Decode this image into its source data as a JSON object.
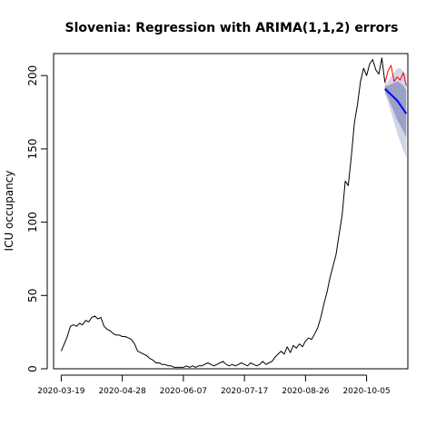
{
  "chart_data": {
    "type": "line",
    "title": "Slovenia: Regression with ARIMA(1,1,2) errors",
    "xlabel": "",
    "ylabel": "ICU occupancy",
    "x_ticks": [
      "2020-03-19",
      "2020-04-28",
      "2020-06-07",
      "2020-07-17",
      "2020-08-26",
      "2020-10-05"
    ],
    "y_ticks": [
      "0",
      "50",
      "100",
      "150",
      "200"
    ],
    "ylim": [
      0,
      215
    ],
    "xlim": [
      "2020-03-14",
      "2020-11-01"
    ],
    "grid": false,
    "series": [
      {
        "name": "",
        "role": "observed",
        "color": "#000000",
        "points": [
          [
            "2020-03-19",
            12
          ],
          [
            "2020-03-21",
            17
          ],
          [
            "2020-03-23",
            22
          ],
          [
            "2020-03-25",
            29
          ],
          [
            "2020-03-27",
            30
          ],
          [
            "2020-03-29",
            29
          ],
          [
            "2020-03-31",
            31
          ],
          [
            "2020-04-02",
            30
          ],
          [
            "2020-04-04",
            33
          ],
          [
            "2020-04-06",
            32
          ],
          [
            "2020-04-08",
            35
          ],
          [
            "2020-04-10",
            36
          ],
          [
            "2020-04-12",
            34
          ],
          [
            "2020-04-14",
            35
          ],
          [
            "2020-04-16",
            29
          ],
          [
            "2020-04-18",
            27
          ],
          [
            "2020-04-20",
            26
          ],
          [
            "2020-04-22",
            24
          ],
          [
            "2020-04-24",
            23
          ],
          [
            "2020-04-26",
            23
          ],
          [
            "2020-04-28",
            22
          ],
          [
            "2020-04-30",
            22
          ],
          [
            "2020-05-02",
            21
          ],
          [
            "2020-05-04",
            20
          ],
          [
            "2020-05-06",
            17
          ],
          [
            "2020-05-08",
            12
          ],
          [
            "2020-05-10",
            11
          ],
          [
            "2020-05-12",
            10
          ],
          [
            "2020-05-14",
            9
          ],
          [
            "2020-05-16",
            7
          ],
          [
            "2020-05-18",
            6
          ],
          [
            "2020-05-20",
            4
          ],
          [
            "2020-05-22",
            4
          ],
          [
            "2020-05-24",
            3
          ],
          [
            "2020-05-26",
            3
          ],
          [
            "2020-05-28",
            2
          ],
          [
            "2020-05-30",
            2
          ],
          [
            "2020-06-01",
            1
          ],
          [
            "2020-06-03",
            1
          ],
          [
            "2020-06-05",
            1
          ],
          [
            "2020-06-07",
            1
          ],
          [
            "2020-06-09",
            2
          ],
          [
            "2020-06-11",
            1
          ],
          [
            "2020-06-13",
            2
          ],
          [
            "2020-06-15",
            1
          ],
          [
            "2020-06-17",
            2
          ],
          [
            "2020-06-19",
            2
          ],
          [
            "2020-06-21",
            3
          ],
          [
            "2020-06-23",
            4
          ],
          [
            "2020-06-25",
            3
          ],
          [
            "2020-06-27",
            2
          ],
          [
            "2020-06-29",
            3
          ],
          [
            "2020-07-01",
            4
          ],
          [
            "2020-07-03",
            5
          ],
          [
            "2020-07-05",
            3
          ],
          [
            "2020-07-07",
            2
          ],
          [
            "2020-07-09",
            3
          ],
          [
            "2020-07-11",
            2
          ],
          [
            "2020-07-13",
            3
          ],
          [
            "2020-07-15",
            4
          ],
          [
            "2020-07-17",
            3
          ],
          [
            "2020-07-19",
            2
          ],
          [
            "2020-07-21",
            4
          ],
          [
            "2020-07-23",
            3
          ],
          [
            "2020-07-25",
            2
          ],
          [
            "2020-07-27",
            3
          ],
          [
            "2020-07-29",
            5
          ],
          [
            "2020-07-31",
            3
          ],
          [
            "2020-08-02",
            4
          ],
          [
            "2020-08-04",
            5
          ],
          [
            "2020-08-06",
            8
          ],
          [
            "2020-08-08",
            10
          ],
          [
            "2020-08-10",
            12
          ],
          [
            "2020-08-12",
            10
          ],
          [
            "2020-08-14",
            15
          ],
          [
            "2020-08-16",
            11
          ],
          [
            "2020-08-18",
            16
          ],
          [
            "2020-08-20",
            14
          ],
          [
            "2020-08-22",
            17
          ],
          [
            "2020-08-24",
            15
          ],
          [
            "2020-08-26",
            19
          ],
          [
            "2020-08-28",
            21
          ],
          [
            "2020-08-30",
            20
          ],
          [
            "2020-09-01",
            24
          ],
          [
            "2020-09-03",
            28
          ],
          [
            "2020-09-05",
            35
          ],
          [
            "2020-09-07",
            44
          ],
          [
            "2020-09-09",
            52
          ],
          [
            "2020-09-11",
            62
          ],
          [
            "2020-09-13",
            70
          ],
          [
            "2020-09-15",
            78
          ],
          [
            "2020-09-17",
            92
          ],
          [
            "2020-09-19",
            105
          ],
          [
            "2020-09-21",
            128
          ],
          [
            "2020-09-23",
            125
          ],
          [
            "2020-09-25",
            145
          ],
          [
            "2020-09-27",
            168
          ],
          [
            "2020-09-29",
            180
          ],
          [
            "2020-10-01",
            196
          ],
          [
            "2020-10-03",
            205
          ],
          [
            "2020-10-05",
            200
          ],
          [
            "2020-10-07",
            208
          ],
          [
            "2020-10-09",
            211
          ],
          [
            "2020-10-11",
            204
          ],
          [
            "2020-10-13",
            201
          ],
          [
            "2020-10-15",
            212
          ],
          [
            "2020-10-17",
            195
          ]
        ]
      },
      {
        "name": "",
        "role": "actual-after",
        "color": "#ff0000",
        "points": [
          [
            "2020-10-17",
            195
          ],
          [
            "2020-10-19",
            203
          ],
          [
            "2020-10-21",
            207
          ],
          [
            "2020-10-23",
            196
          ],
          [
            "2020-10-25",
            199
          ],
          [
            "2020-10-27",
            197
          ],
          [
            "2020-10-29",
            202
          ],
          [
            "2020-10-31",
            193
          ]
        ]
      },
      {
        "name": "",
        "role": "forecast",
        "color": "#0000ff",
        "points": [
          [
            "2020-10-17",
            191
          ],
          [
            "2020-10-19",
            189
          ],
          [
            "2020-10-21",
            187
          ],
          [
            "2020-10-23",
            185
          ],
          [
            "2020-10-25",
            183
          ],
          [
            "2020-10-27",
            180
          ],
          [
            "2020-10-29",
            177
          ],
          [
            "2020-10-31",
            174
          ]
        ]
      }
    ],
    "intervals": [
      {
        "level": "80",
        "color": "#9aa0c8",
        "x": [
          "2020-10-17",
          "2020-10-19",
          "2020-10-21",
          "2020-10-23",
          "2020-10-25",
          "2020-10-27",
          "2020-10-29",
          "2020-10-31"
        ],
        "lower": [
          189,
          185,
          180,
          175,
          170,
          166,
          162,
          158
        ],
        "upper": [
          193,
          193,
          194,
          195,
          196,
          195,
          193,
          190
        ]
      },
      {
        "level": "95",
        "color": "#d2d4e8",
        "x": [
          "2020-10-17",
          "2020-10-19",
          "2020-10-21",
          "2020-10-23",
          "2020-10-25",
          "2020-10-27",
          "2020-10-29",
          "2020-10-31"
        ],
        "lower": [
          188,
          182,
          175,
          168,
          161,
          155,
          149,
          144
        ],
        "upper": [
          194,
          196,
          199,
          202,
          205,
          205,
          203,
          201
        ]
      }
    ]
  }
}
